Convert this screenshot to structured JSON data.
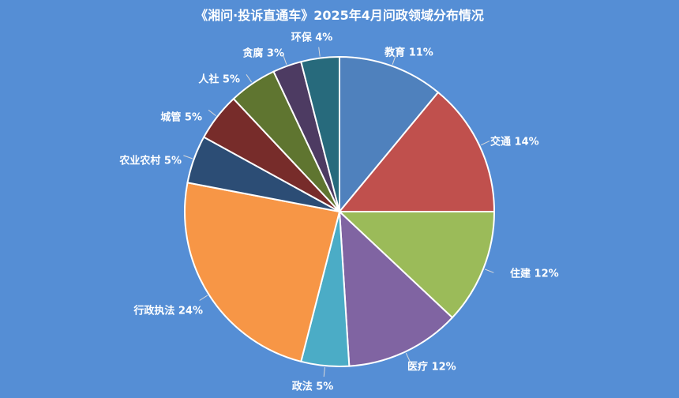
{
  "chart_data": {
    "type": "pie",
    "title": "《湘问·投诉直通车》2025年4月问政领域分布情况",
    "slices": [
      {
        "label": "教育",
        "value": 11,
        "display": "教育 11%",
        "color": "#4f81bd"
      },
      {
        "label": "交通",
        "value": 14,
        "display": "交通 14%",
        "color": "#c0504d"
      },
      {
        "label": "住建",
        "value": 12,
        "display": "住建 12%",
        "color": "#9bbb59"
      },
      {
        "label": "医疗",
        "value": 12,
        "display": "医疗 12%",
        "color": "#8064a2"
      },
      {
        "label": "政法",
        "value": 5,
        "display": "政法 5%",
        "color": "#4bacc6"
      },
      {
        "label": "行政执法",
        "value": 24,
        "display": "行政执法 24%",
        "color": "#f79646"
      },
      {
        "label": "农业农村",
        "value": 5,
        "display": "农业农村 5%",
        "color": "#2c4d75"
      },
      {
        "label": "城管",
        "value": 5,
        "display": "城管 5%",
        "color": "#772c2a"
      },
      {
        "label": "人社",
        "value": 5,
        "display": "人社 5%",
        "color": "#5f7530"
      },
      {
        "label": "贪腐",
        "value": 3,
        "display": "贪腐 3%",
        "color": "#4d3b62"
      },
      {
        "label": "环保",
        "value": 4,
        "display": "环保 4%",
        "color": "#276a7c"
      }
    ]
  }
}
